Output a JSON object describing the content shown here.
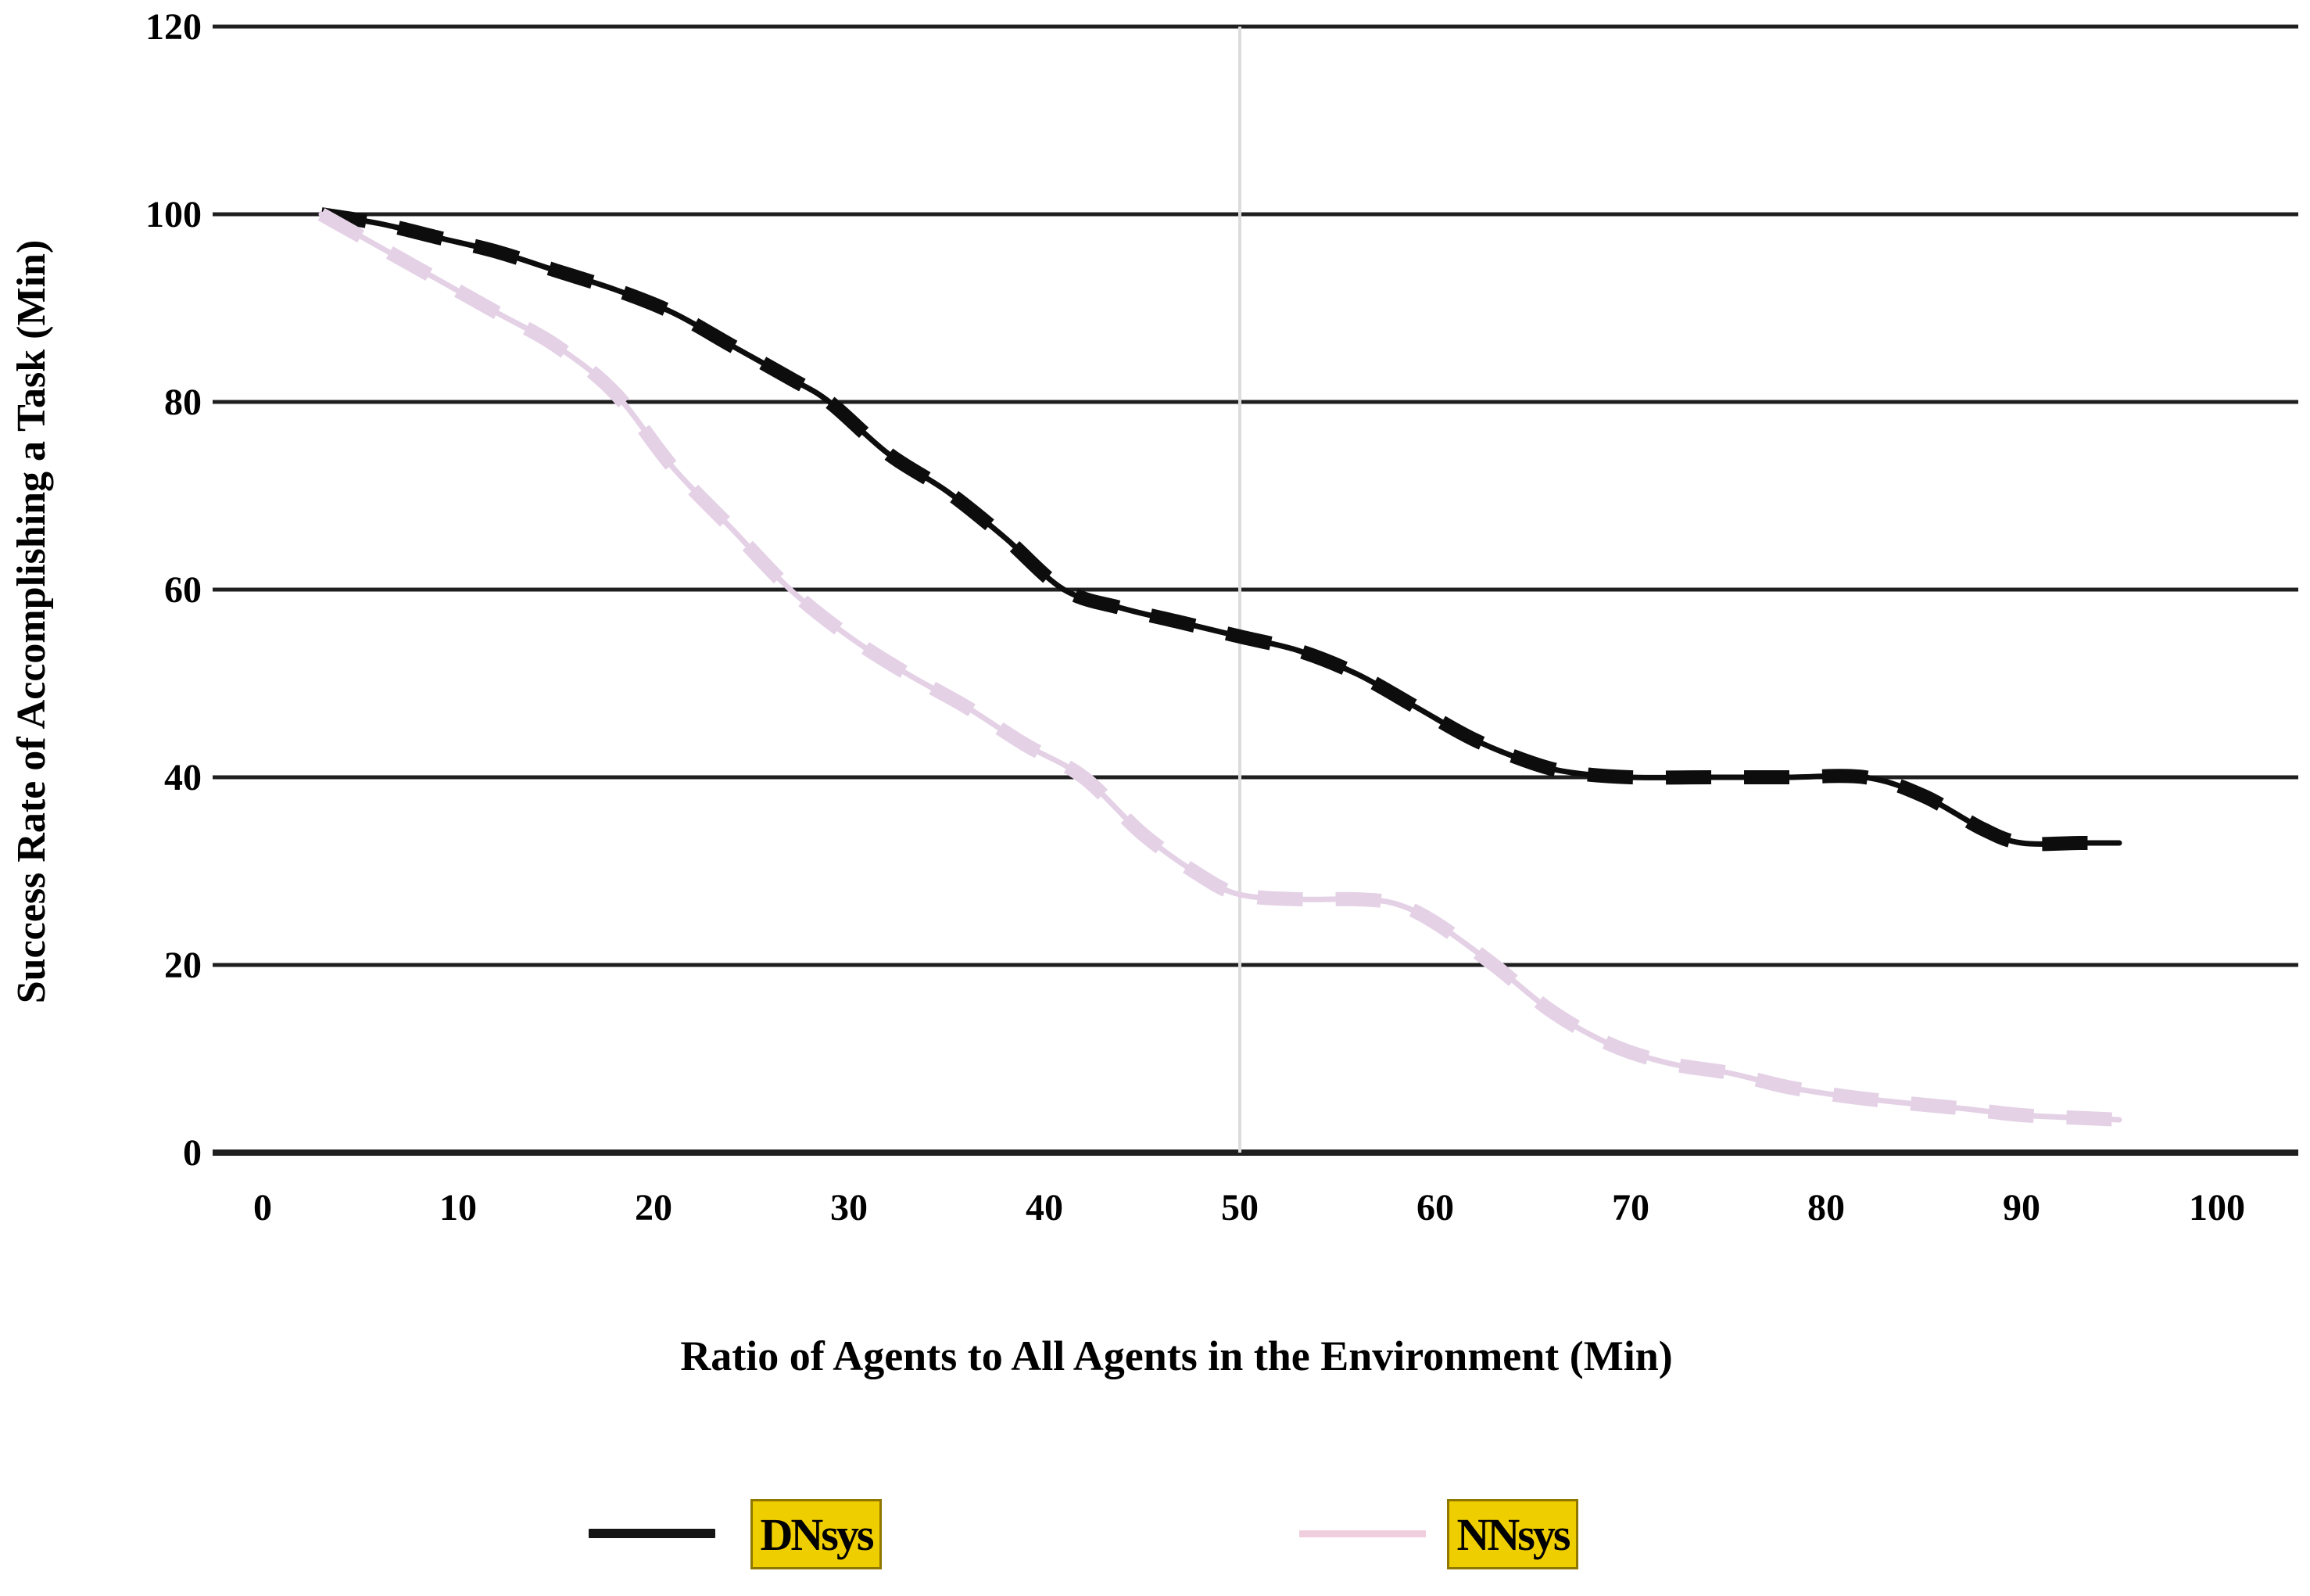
{
  "chart_data": {
    "type": "line",
    "title": "",
    "xlabel": "Ratio of Agents to All Agents in the Environment (Min)",
    "ylabel": "Success Rate of Accomplishing a Task (Min)",
    "xlim": [
      0,
      100
    ],
    "ylim": [
      0,
      120
    ],
    "x_ticks": [
      0,
      10,
      20,
      30,
      40,
      50,
      60,
      70,
      80,
      90,
      100
    ],
    "y_ticks": [
      0,
      20,
      40,
      60,
      80,
      100,
      120
    ],
    "grid": "horizontal-on, faint vertical line at x=50",
    "legend_position": "bottom",
    "series": [
      {
        "name": "DNsys",
        "color": "#0d0d0d",
        "line_style": "solid with thick dash overlay",
        "points": [
          [
            3,
            100
          ],
          [
            6,
            99
          ],
          [
            9,
            97.5
          ],
          [
            12,
            96
          ],
          [
            15,
            94
          ],
          [
            18,
            92
          ],
          [
            21,
            89.5
          ],
          [
            24,
            86
          ],
          [
            27,
            82.5
          ],
          [
            29,
            80
          ],
          [
            32,
            74.5
          ],
          [
            35,
            70.5
          ],
          [
            38,
            65.5
          ],
          [
            41,
            60
          ],
          [
            44,
            58
          ],
          [
            47,
            56.5
          ],
          [
            50,
            55
          ],
          [
            53,
            53.5
          ],
          [
            56,
            51
          ],
          [
            59,
            47.5
          ],
          [
            62,
            44
          ],
          [
            65,
            41.5
          ],
          [
            67,
            40.5
          ],
          [
            70,
            40
          ],
          [
            74,
            40
          ],
          [
            78,
            40
          ],
          [
            82,
            40
          ],
          [
            85,
            38
          ],
          [
            88,
            34.5
          ],
          [
            90,
            33
          ],
          [
            93,
            33
          ],
          [
            95,
            33
          ]
        ]
      },
      {
        "name": "NNsys",
        "color": "#e4d1e6",
        "line_style": "solid with thick dash overlay",
        "points": [
          [
            3,
            100
          ],
          [
            6,
            96.5
          ],
          [
            9,
            93
          ],
          [
            12,
            89.5
          ],
          [
            15,
            86
          ],
          [
            18,
            81
          ],
          [
            21,
            73
          ],
          [
            24,
            66.5
          ],
          [
            27,
            60
          ],
          [
            30,
            55
          ],
          [
            33,
            51
          ],
          [
            36,
            47.5
          ],
          [
            39,
            43.5
          ],
          [
            42,
            40
          ],
          [
            45,
            34
          ],
          [
            48,
            29.5
          ],
          [
            50,
            27.5
          ],
          [
            53,
            27
          ],
          [
            56,
            27
          ],
          [
            58,
            26.5
          ],
          [
            60,
            24.5
          ],
          [
            63,
            20
          ],
          [
            66,
            15
          ],
          [
            69,
            11.5
          ],
          [
            72,
            9.5
          ],
          [
            75,
            8.5
          ],
          [
            78,
            7
          ],
          [
            81,
            6
          ],
          [
            84,
            5.3
          ],
          [
            87,
            4.7
          ],
          [
            90,
            4
          ],
          [
            93,
            3.7
          ],
          [
            95,
            3.5
          ]
        ]
      }
    ]
  },
  "axes": {
    "x_tick_labels": [
      "0",
      "10",
      "20",
      "30",
      "40",
      "50",
      "60",
      "70",
      "80",
      "90",
      "100"
    ],
    "y_tick_labels": [
      "0",
      "20",
      "40",
      "60",
      "80",
      "100",
      "120"
    ],
    "x_title": "Ratio of Agents to All Agents in the Environment (Min)",
    "y_title": "Success Rate of Accomplishing a Task (Min)"
  },
  "legend": {
    "items": [
      {
        "label": "DNsys",
        "line_color": "#141414"
      },
      {
        "label": "NNsys",
        "line_color": "#f0cede"
      }
    ],
    "highlight_bg": "#efce00",
    "highlight_border": "#8f7700"
  },
  "colors": {
    "gridline": "#1f1f1f",
    "vertical_gridline": "#dcdcdc",
    "background": "#ffffff"
  }
}
